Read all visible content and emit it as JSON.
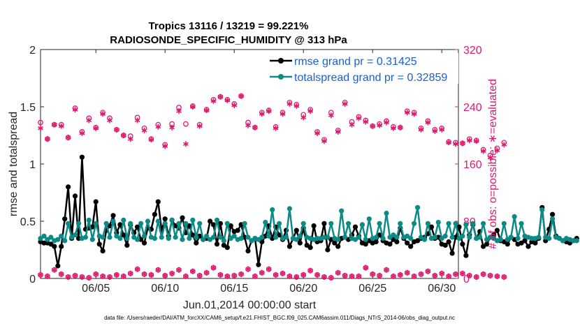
{
  "chart_data": {
    "type": "line",
    "title": "Tropics 13116 / 13219 = 99.221%",
    "subtitle": "RADIOSONDE_SPECIFIC_HUMIDITY @ 313 hPa",
    "xlabel": "Jun.01,2014 00:00:00 start",
    "ylabel": "rmse and totalspread",
    "ylabel_right": "# of obs: o=possible; ∗=evaluated",
    "footnote": "data file: /Users/raeder/DAI/ATM_forcXX/CAM6_setup/f.e21.FHIST_BGC.f09_025.CAM6assim.011/Diags_NTrS_2014-06/obs_diag_output.nc",
    "x_range_days": [
      1,
      31.2
    ],
    "ylim": [
      0,
      2
    ],
    "ylim_right": [
      0,
      320
    ],
    "x_ticks": [
      {
        "day": 5,
        "label": "06/05"
      },
      {
        "day": 10,
        "label": "06/10"
      },
      {
        "day": 15,
        "label": "06/15"
      },
      {
        "day": 20,
        "label": "06/20"
      },
      {
        "day": 25,
        "label": "06/25"
      },
      {
        "day": 30,
        "label": "06/30"
      }
    ],
    "y_ticks": [
      {
        "value": 0,
        "label": "0"
      },
      {
        "value": 0.5,
        "label": "0.5"
      },
      {
        "value": 1,
        "label": "1"
      },
      {
        "value": 1.5,
        "label": "1.5"
      },
      {
        "value": 2,
        "label": "2"
      }
    ],
    "y_ticks_right": [
      {
        "value": 0,
        "label": "0"
      },
      {
        "value": 80,
        "label": "80"
      },
      {
        "value": 160,
        "label": "160"
      },
      {
        "value": 240,
        "label": "240"
      },
      {
        "value": 320,
        "label": "320"
      }
    ],
    "legend_position": "top-right",
    "series": [
      {
        "name": "rmse",
        "legend": "rmse grand pr = 0.31425",
        "color": "#000000",
        "axis": "left",
        "x_start_day": 1,
        "x_step_day": 0.25,
        "values": [
          0.32,
          0.31,
          0.31,
          0.3,
          0.28,
          0.11,
          0.28,
          0.52,
          0.8,
          0.35,
          0.72,
          0.35,
          1.06,
          0.43,
          0.44,
          0.45,
          0.67,
          0.3,
          0.24,
          0.42,
          0.46,
          0.55,
          0.4,
          0.47,
          0.38,
          0.29,
          0.47,
          0.4,
          0.45,
          0.34,
          0.31,
          0.44,
          0.43,
          0.56,
          0.67,
          0.42,
          0.52,
          0.37,
          0.51,
          0.46,
          0.44,
          0.53,
          0.4,
          0.46,
          0.38,
          0.31,
          0.37,
          0.34,
          0.35,
          0.5,
          0.47,
          0.3,
          0.48,
          0.29,
          0.27,
          0.46,
          0.41,
          0.42,
          0.47,
          0.36,
          0.24,
          0.33,
          0.35,
          0.12,
          0.32,
          0.37,
          0.46,
          0.35,
          0.45,
          0.38,
          0.34,
          0.42,
          0.28,
          0.35,
          0.42,
          0.31,
          0.44,
          0.29,
          0.27,
          0.46,
          0.32,
          0.33,
          0.48,
          0.25,
          0.34,
          0.31,
          0.28,
          0.35,
          0.36,
          0.34,
          0.38,
          0.45,
          0.37,
          0.31,
          0.3,
          0.33,
          0.31,
          0.32,
          0.38,
          0.33,
          0.31,
          0.3,
          0.34,
          0.32,
          0.44,
          0.35,
          0.31,
          0.28,
          0.32,
          0.33,
          0.35,
          0.36,
          0.39,
          0.45,
          0.35,
          0.36,
          0.3,
          0.29,
          0.32,
          0.22,
          0.36,
          0.45,
          0.3,
          0.2,
          0.38,
          0.47,
          0.35,
          0.41,
          0.28,
          0.3,
          0.36,
          0.38,
          0.42,
          0.33,
          0.32,
          0.3,
          0.36,
          0.34,
          0.3,
          0.31,
          0.33,
          0.28,
          0.32,
          0.31,
          0.35,
          0.62,
          0.33,
          0.43,
          0.56,
          0.37,
          0.35,
          0.33,
          0.32,
          0.31,
          0.33,
          0.35
        ]
      },
      {
        "name": "totalspread",
        "legend": "totalspread grand pr = 0.32859",
        "color": "#0c8a86",
        "axis": "left",
        "x_start_day": 1,
        "x_step_day": 0.25,
        "values": [
          0.35,
          0.37,
          0.34,
          0.36,
          0.33,
          0.34,
          0.37,
          0.33,
          0.48,
          0.36,
          0.38,
          0.48,
          0.35,
          0.36,
          0.51,
          0.34,
          0.48,
          0.37,
          0.36,
          0.48,
          0.36,
          0.5,
          0.37,
          0.35,
          0.51,
          0.35,
          0.48,
          0.36,
          0.34,
          0.48,
          0.37,
          0.5,
          0.36,
          0.35,
          0.5,
          0.36,
          0.48,
          0.35,
          0.51,
          0.36,
          0.48,
          0.34,
          0.48,
          0.35,
          0.51,
          0.36,
          0.48,
          0.34,
          0.37,
          0.34,
          0.36,
          0.51,
          0.36,
          0.33,
          0.48,
          0.35,
          0.37,
          0.34,
          0.35,
          0.48,
          0.36,
          0.33,
          0.35,
          0.34,
          0.36,
          0.49,
          0.37,
          0.6,
          0.36,
          0.48,
          0.35,
          0.36,
          0.61,
          0.35,
          0.34,
          0.37,
          0.48,
          0.36,
          0.35,
          0.34,
          0.35,
          0.35,
          0.36,
          0.36,
          0.48,
          0.35,
          0.34,
          0.59,
          0.36,
          0.48,
          0.35,
          0.34,
          0.36,
          0.47,
          0.34,
          0.52,
          0.35,
          0.36,
          0.48,
          0.35,
          0.57,
          0.36,
          0.38,
          0.36,
          0.48,
          0.36,
          0.37,
          0.35,
          0.48,
          0.62,
          0.36,
          0.34,
          0.48,
          0.35,
          0.36,
          0.49,
          0.35,
          0.37,
          0.48,
          0.36,
          0.48,
          0.35,
          0.37,
          0.47,
          0.36,
          0.48,
          0.35,
          0.36,
          0.48,
          0.34,
          0.36,
          0.35,
          0.33,
          0.34,
          0.48,
          0.34,
          0.36,
          0.54,
          0.35,
          0.48,
          0.37,
          0.36,
          0.35,
          0.35,
          0.36,
          0.6,
          0.36,
          0.35,
          0.52,
          0.36,
          0.35,
          0.33,
          0.35,
          0.34,
          0.33,
          0.33
        ]
      },
      {
        "name": "obs_possible",
        "marker": "o",
        "color": "#e0196d",
        "axis": "right",
        "x_start_day": 1,
        "x_step_day": 0.5,
        "values": [
          218,
          195,
          215,
          215,
          197,
          238,
          205,
          224,
          211,
          232,
          224,
          208,
          200,
          199,
          225,
          210,
          195,
          215,
          187,
          216,
          239,
          216,
          241,
          215,
          236,
          250,
          254,
          250,
          244,
          255,
          218,
          211,
          232,
          235,
          212,
          232,
          246,
          243,
          229,
          236,
          205,
          194,
          232,
          207,
          246,
          219,
          226,
          221,
          213,
          216,
          220,
          212,
          211,
          234,
          232,
          210,
          220,
          208,
          210,
          191,
          190,
          189,
          195,
          193,
          180,
          172,
          182,
          190
        ]
      },
      {
        "name": "obs_evaluated",
        "marker": "*",
        "color": "#e0196d",
        "axis": "right",
        "x_start_day": 1,
        "x_step_day": 0.5,
        "values": [
          210,
          195,
          215,
          213,
          197,
          236,
          203,
          221,
          210,
          230,
          221,
          208,
          200,
          195,
          221,
          207,
          194,
          212,
          185,
          211,
          234,
          188,
          240,
          213,
          235,
          248,
          254,
          249,
          242,
          255,
          214,
          211,
          230,
          234,
          210,
          230,
          244,
          241,
          225,
          234,
          203,
          192,
          228,
          205,
          244,
          215,
          224,
          219,
          213,
          214,
          218,
          210,
          211,
          232,
          230,
          208,
          218,
          206,
          208,
          190,
          188,
          189,
          193,
          192,
          178,
          169,
          179,
          187
        ]
      },
      {
        "name": "obs_low",
        "marker": "o*",
        "color": "#e0196d",
        "axis": "right",
        "x_start_day": 1,
        "x_step_day": 0.5,
        "values": [
          5,
          3,
          12,
          6,
          2,
          4,
          2,
          1,
          6,
          3,
          2,
          5,
          3,
          7,
          13,
          6,
          5,
          12,
          4,
          7,
          12,
          3,
          10,
          4,
          8,
          15,
          5,
          3,
          4,
          6,
          13,
          3,
          8,
          13,
          5,
          7,
          3,
          2,
          5,
          11,
          5,
          2,
          1,
          8,
          4,
          3,
          3,
          15,
          6,
          4,
          12,
          3,
          5,
          8,
          3,
          6,
          10,
          4,
          7,
          3,
          6,
          7,
          4,
          2,
          6,
          4,
          3,
          2
        ]
      }
    ]
  }
}
